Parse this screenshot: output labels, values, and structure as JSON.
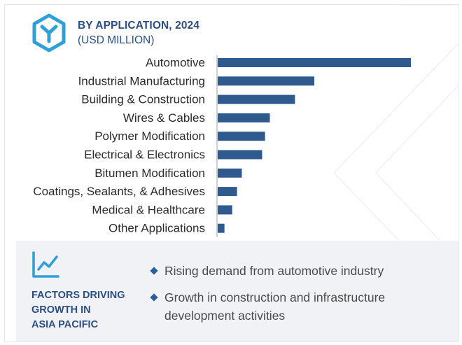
{
  "header": {
    "title": "BY APPLICATION, 2024",
    "subtitle": "(USD MILLION)",
    "logo_icon": "hexagon-y-logo-icon"
  },
  "colors": {
    "bar": "#2f5a8e",
    "brand": "#2c4f80",
    "label": "#2b2b2b",
    "panel": "#f0f2f5",
    "bullet": "#2c5f9a"
  },
  "chart_data": {
    "type": "bar",
    "orientation": "horizontal",
    "categories": [
      "Automotive",
      "Industrial Manufacturing",
      "Building & Construction",
      "Wires & Cables",
      "Polymer Modification",
      "Electrical & Electronics",
      "Bitumen Modification",
      "Coatings, Sealants, & Adhesives",
      "Medical & Healthcare",
      "Other Applications"
    ],
    "values": [
      100,
      50,
      40,
      27,
      24.5,
      23,
      12.5,
      10,
      7.5,
      3.5
    ],
    "xlim": [
      0,
      100
    ],
    "title": "BY APPLICATION, 2024",
    "subtitle": "(USD MILLION)",
    "grid": false,
    "axis_tick_labels": false
  },
  "factors": {
    "icon": "line-chart-trend-icon",
    "title_lines": [
      "FACTORS DRIVING",
      "GROWTH IN",
      "ASIA PACIFIC"
    ],
    "bullets": [
      "Rising demand from automotive industry",
      "Growth in construction and infrastructure development activities"
    ]
  }
}
